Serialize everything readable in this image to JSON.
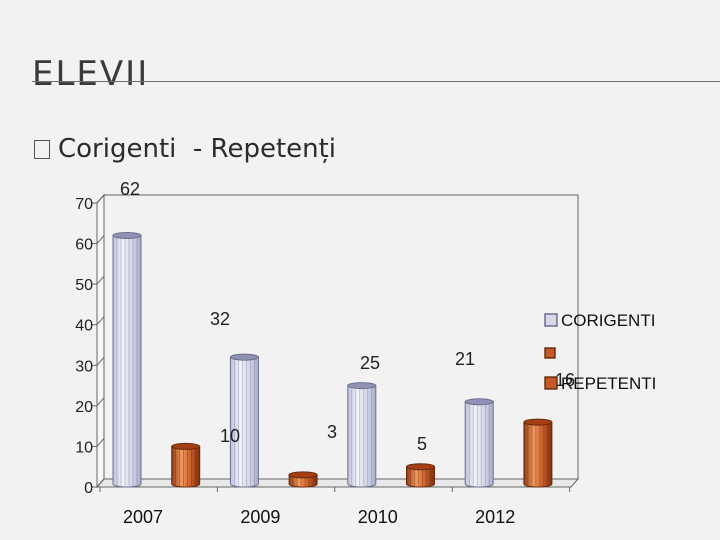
{
  "slide": {
    "title": "ELEVII",
    "bullet": "Corigenti  - Repetenți"
  },
  "colors": {
    "background": "#f2f2f2",
    "corigenti": "#d9dbec",
    "repetenti": "#c45a28",
    "axis": "#666666"
  },
  "chart_data": {
    "type": "bar",
    "three_d": true,
    "bar_shape": "cylinder",
    "categories": [
      "2007",
      "",
      "2009",
      "",
      "2010",
      "",
      "2012",
      ""
    ],
    "series": [
      {
        "name": "CORIGENTI",
        "values": [
          62,
          null,
          32,
          null,
          25,
          null,
          21,
          null
        ]
      },
      {
        "name": "REPETENTI",
        "values": [
          null,
          10,
          null,
          3,
          null,
          5,
          null,
          16
        ]
      }
    ],
    "data_labels": [
      {
        "text": "62",
        "series": 0,
        "index": 0
      },
      {
        "text": "32",
        "series": 0,
        "index": 2
      },
      {
        "text": "25",
        "series": 0,
        "index": 4
      },
      {
        "text": "21",
        "series": 0,
        "index": 6
      },
      {
        "text": "10",
        "series": 1,
        "index": 1
      },
      {
        "text": "3",
        "series": 1,
        "index": 3
      },
      {
        "text": "5",
        "series": 1,
        "index": 5
      },
      {
        "text": "16",
        "series": 1,
        "index": 7
      }
    ],
    "y_ticks": [
      0,
      10,
      20,
      30,
      40,
      50,
      60,
      70
    ],
    "ylim": [
      0,
      70
    ],
    "xlabel": "",
    "ylabel": "",
    "legend": [
      "CORIGENTI",
      "REPETENTI"
    ],
    "legend_position": "right",
    "grid": false
  }
}
